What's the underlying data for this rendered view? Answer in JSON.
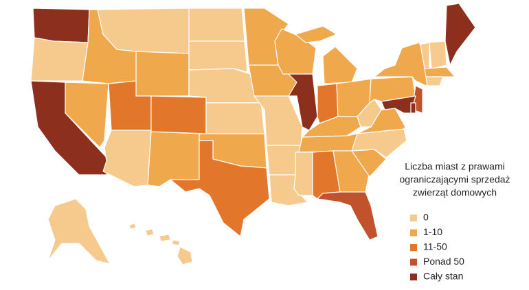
{
  "legend": {
    "title": [
      "Liczba miast z prawami",
      "ograniczającymi sprzedaż",
      "zwierząt domowych"
    ],
    "items": [
      {
        "label": "0",
        "color": "#f6c98c"
      },
      {
        "label": "1-10",
        "color": "#efa94c"
      },
      {
        "label": "11-50",
        "color": "#e2762a"
      },
      {
        "label": "Ponad 50",
        "color": "#c2522b"
      },
      {
        "label": "Cały stan",
        "color": "#8c2f1d"
      }
    ]
  }
}
